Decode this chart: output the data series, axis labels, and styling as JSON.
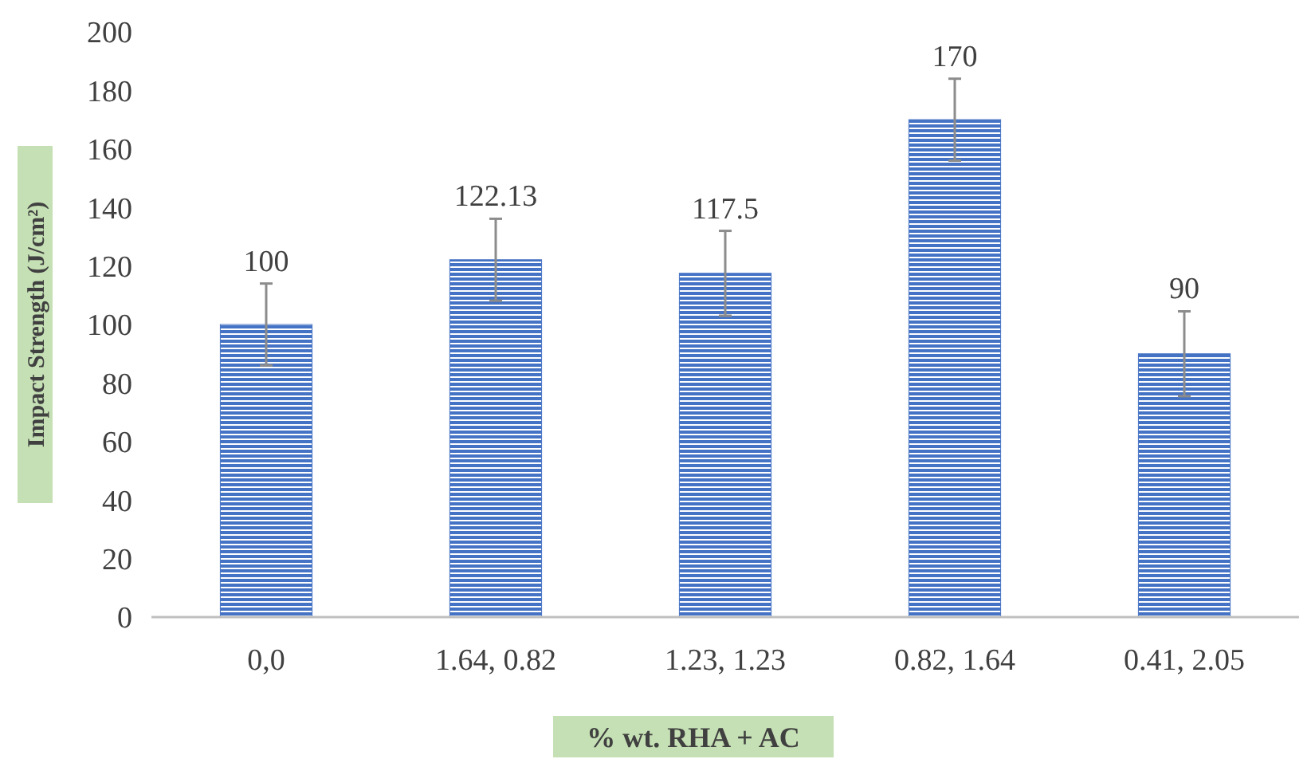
{
  "chart_data": {
    "type": "bar",
    "xlabel": "% wt. RHA + AC",
    "ylabel": "Impact Strength (J/cm²)",
    "categories": [
      "0,0",
      "1.64, 0.82",
      "1.23, 1.23",
      "0.82, 1.64",
      "0.41, 2.05"
    ],
    "values": [
      100,
      122.13,
      117.5,
      170,
      90
    ],
    "errors": [
      14,
      14,
      14.5,
      14,
      14.5
    ],
    "color": "#4472c4",
    "data_labels": true,
    "grid": false,
    "ylim": [
      0,
      200
    ],
    "yticks": [
      0,
      20,
      40,
      60,
      80,
      100,
      120,
      140,
      160,
      180,
      200
    ]
  }
}
